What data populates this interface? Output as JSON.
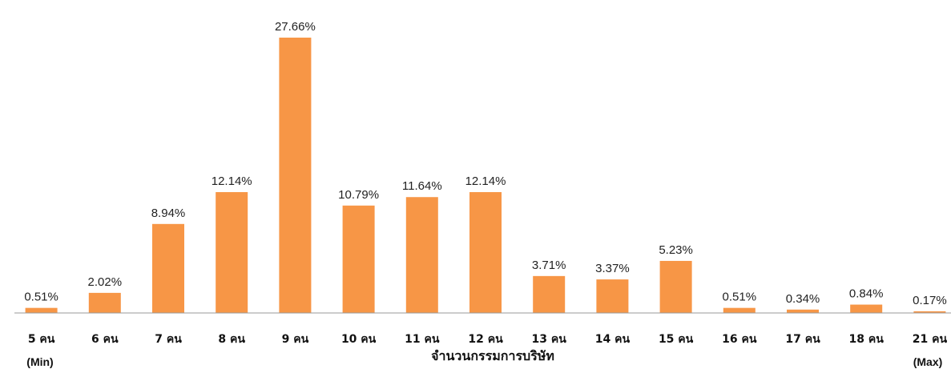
{
  "chart_data": {
    "type": "bar",
    "categories": [
      "5 คน",
      "6 คน",
      "7 คน",
      "8 คน",
      "9 คน",
      "10 คน",
      "11 คน",
      "12 คน",
      "13 คน",
      "14 คน",
      "15 คน",
      "16 คน",
      "17 คน",
      "18 คน",
      "21 คน"
    ],
    "values": [
      0.51,
      2.02,
      8.94,
      12.14,
      27.66,
      10.79,
      11.64,
      12.14,
      3.71,
      3.37,
      5.23,
      0.51,
      0.34,
      0.84,
      0.17
    ],
    "value_labels": [
      "0.51%",
      "2.02%",
      "8.94%",
      "12.14%",
      "27.66%",
      "10.79%",
      "11.64%",
      "12.14%",
      "3.71%",
      "3.37%",
      "5.23%",
      "0.51%",
      "0.34%",
      "0.84%",
      "0.17%"
    ],
    "min_label": "(Min)",
    "max_label": "(Max)",
    "title": "",
    "xlabel": "จำนวนกรรมการบริษัท",
    "ylabel": "",
    "ylim": [
      0,
      27.66
    ],
    "grid": false,
    "bar_color": "#F79646",
    "axis_color": "#999999"
  }
}
